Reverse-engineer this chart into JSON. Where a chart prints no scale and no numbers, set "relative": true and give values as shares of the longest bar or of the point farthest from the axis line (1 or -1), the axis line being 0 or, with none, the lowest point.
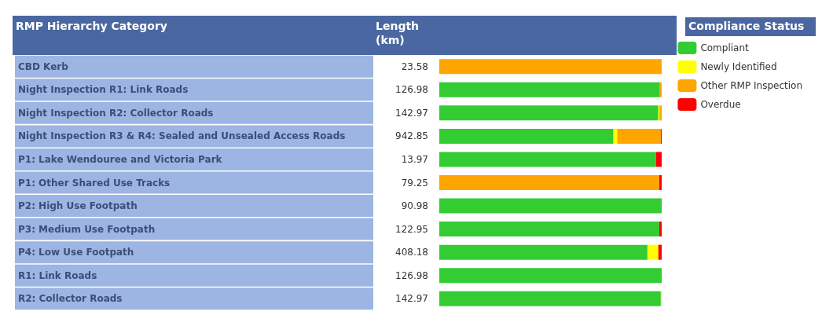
{
  "chart_data": {
    "type": "bar",
    "orientation": "horizontal",
    "stacked": true,
    "relative": true,
    "ylabel": "RMP Hierarchy Category",
    "legend_title": "Compliance Status",
    "legend": "right",
    "categories": [
      "CBD Kerb",
      "Night Inspection R1: Link Roads",
      "Night Inspection R2: Collector Roads",
      "Night Inspection R3 & R4: Sealed and Unsealed Access Roads",
      "P1: Lake Wendouree and Victoria Park",
      "P1: Other Shared Use Tracks",
      "P2: High Use Footpath",
      "P3: Medium Use Footpath",
      "P4: Low Use Footpath",
      "R1: Link Roads",
      "R2: Collector Roads"
    ],
    "series": [
      {
        "name": "Compliant",
        "color": "#33cc33",
        "values": [
          0,
          0.992,
          0.985,
          0.783,
          0.975,
          0,
          1,
          0.989,
          0.936,
          1,
          0.996
        ]
      },
      {
        "name": "Newly Identified",
        "color": "#ffff00",
        "values": [
          0,
          0,
          0.005,
          0.017,
          0,
          0,
          0,
          0,
          0.049,
          0,
          0.004
        ]
      },
      {
        "name": "Other RMP Inspection",
        "color": "#ffa500",
        "values": [
          1,
          0.008,
          0.01,
          0.196,
          0,
          0.989,
          0,
          0,
          0,
          0,
          0
        ]
      },
      {
        "name": "Overdue",
        "color": "#ff0000",
        "values": [
          0,
          0,
          0,
          0.004,
          0.025,
          0.011,
          0,
          0.011,
          0.015,
          0,
          0
        ]
      }
    ],
    "annotations": [
      "Length (km)",
      "23.58",
      "126.98",
      "142.97",
      "942.85",
      "13.97",
      "79.25",
      "90.98",
      "122.95",
      "408.18",
      "126.98",
      "142.97"
    ]
  }
}
